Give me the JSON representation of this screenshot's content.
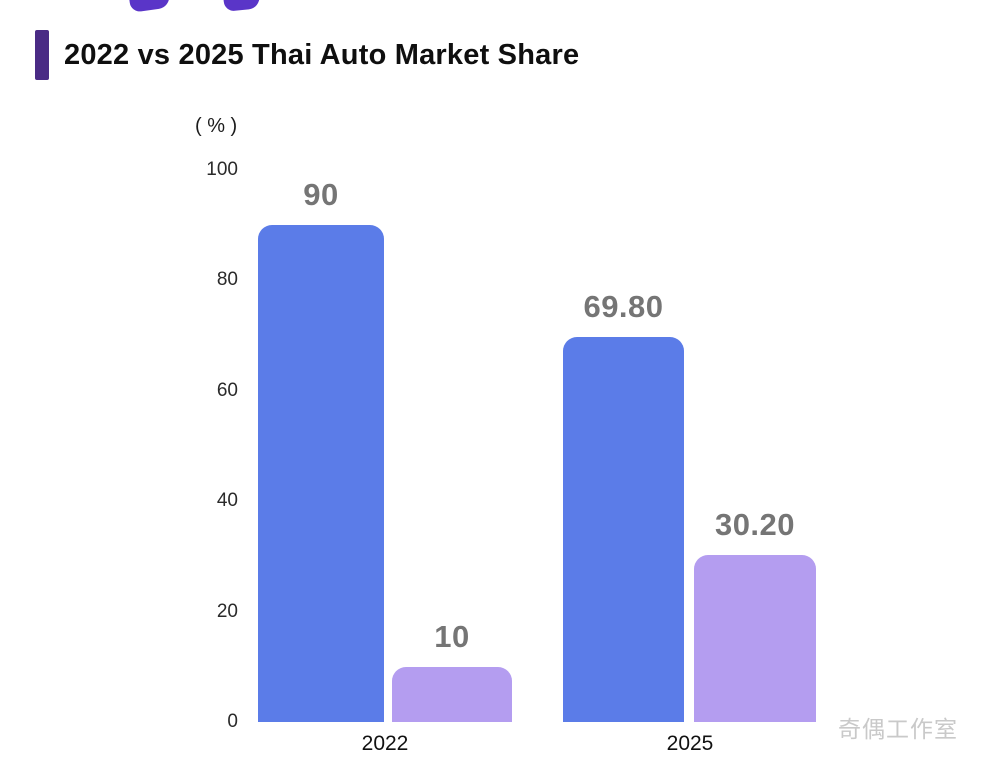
{
  "chart_data": {
    "type": "bar",
    "title": "2022 vs 2025 Thai Auto Market Share",
    "unit_label": "( % )",
    "categories": [
      "2022",
      "2025"
    ],
    "series": [
      {
        "color": "#5b7ce8",
        "values": [
          90,
          69.8
        ],
        "labels": [
          "90",
          "69.80"
        ]
      },
      {
        "color": "#b49df0",
        "values": [
          10,
          30.2
        ],
        "labels": [
          "10",
          "30.20"
        ]
      }
    ],
    "y_ticks": [
      100,
      80,
      60,
      40,
      20,
      0
    ],
    "ylim": [
      0,
      100
    ],
    "grid": false,
    "legend": "none"
  },
  "watermark": {
    "text": "奇偶工作室"
  },
  "colors": {
    "accent_bar": "#4a2b85",
    "blue_bar": "#5b7ce8",
    "purple_bar": "#b49df0",
    "value_label_gray": "#757575",
    "cutoff_text_purple": "#5a35c8"
  }
}
